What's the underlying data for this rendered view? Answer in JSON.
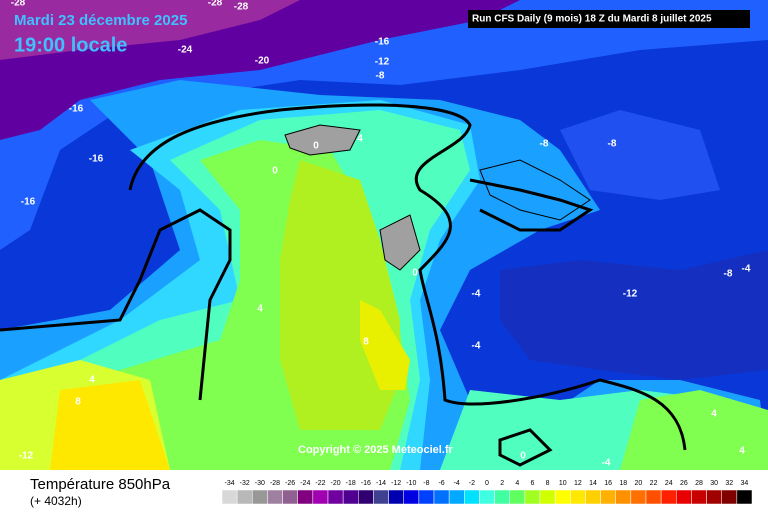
{
  "header": {
    "date": "Mardi 23 décembre 2025",
    "time": "19:00 locale",
    "run": "Run CFS Daily (9 mois) 18 Z du Mardi 8 juillet 2025"
  },
  "copyright": "Copyright © 2025 Meteociel.fr",
  "footer": {
    "title": "Température 850hPa",
    "lead": "(+ 4032h)"
  },
  "contour_labels": [
    "-28",
    "-28",
    "-28",
    "-24",
    "-20",
    "-16",
    "-12",
    "-8",
    "-16",
    "-16",
    "-16",
    "0",
    "4",
    "0",
    "-8",
    "-8",
    "0",
    "-8",
    "-4",
    "-12",
    "-4",
    "-4",
    "4",
    "8",
    "4",
    "8",
    "-12",
    "0",
    "-4",
    "4",
    "4"
  ],
  "scale": {
    "values": [
      -34,
      -32,
      -30,
      -28,
      -26,
      -24,
      -22,
      -20,
      -18,
      -16,
      -14,
      -12,
      -10,
      -8,
      -6,
      -4,
      -2,
      0,
      2,
      4,
      6,
      8,
      10,
      12,
      14,
      16,
      18,
      20,
      22,
      24,
      26,
      28,
      30,
      32,
      34
    ],
    "colors": [
      "#d8d8d8",
      "#b8b8b8",
      "#989898",
      "#a080a0",
      "#906090",
      "#800080",
      "#a000b0",
      "#7000a0",
      "#500090",
      "#300070",
      "#404090",
      "#0000b0",
      "#0000e0",
      "#0040ff",
      "#0070ff",
      "#00a8ff",
      "#00e0ff",
      "#40ffe0",
      "#40ffa0",
      "#60ff60",
      "#a0ff20",
      "#d0ff00",
      "#ffff00",
      "#ffe800",
      "#ffd000",
      "#ffb000",
      "#ff9000",
      "#ff7000",
      "#ff5000",
      "#ff2000",
      "#e80000",
      "#c80000",
      "#a00000",
      "#800000",
      "#000000"
    ]
  }
}
